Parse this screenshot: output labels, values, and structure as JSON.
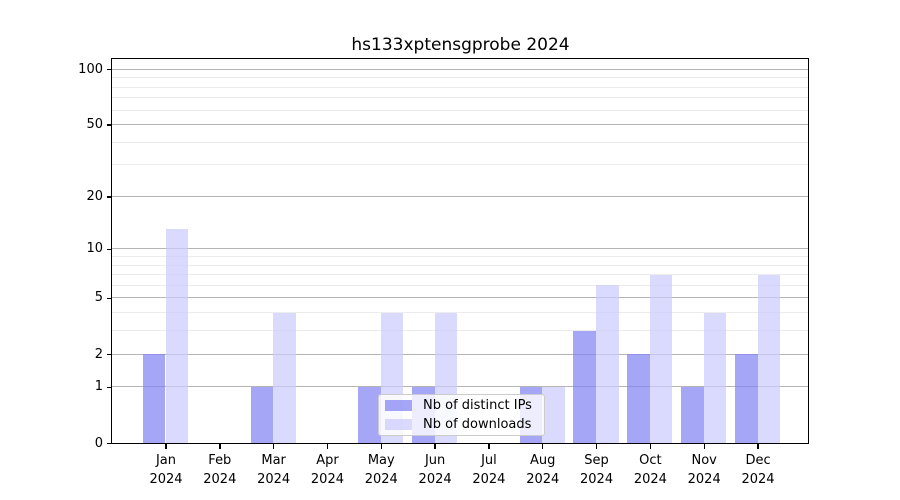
{
  "chart_data": {
    "type": "bar",
    "title": "hs133xptensgprobe 2024",
    "categories": [
      "Jan 2024",
      "Feb 2024",
      "Mar 2024",
      "Apr 2024",
      "May 2024",
      "Jun 2024",
      "Jul 2024",
      "Aug 2024",
      "Sep 2024",
      "Oct 2024",
      "Nov 2024",
      "Dec 2024"
    ],
    "series": [
      {
        "name": "Nb of distinct IPs",
        "color": "rgba(132,132,242,0.72)",
        "values": [
          2,
          0,
          1,
          0,
          1,
          1,
          0,
          1,
          3,
          2,
          1,
          2
        ]
      },
      {
        "name": "Nb of downloads",
        "color": "rgba(204,204,255,0.72)",
        "values": [
          13,
          0,
          4,
          0,
          4,
          4,
          0,
          1,
          6,
          7,
          4,
          7
        ]
      }
    ],
    "xlabel": "",
    "ylabel": "",
    "yscale": "log1p",
    "ylim": [
      0,
      113.6
    ],
    "yticks": [
      0,
      1,
      2,
      5,
      10,
      20,
      50,
      100
    ],
    "yticks_minor": [
      3,
      4,
      6,
      7,
      8,
      9,
      30,
      40,
      60,
      70,
      80,
      90
    ],
    "grid": "horizontal",
    "legend_position": "lower center",
    "colors": {
      "grid_major": "#b5b5b5",
      "grid_minor": "#ececec",
      "spine": "#000000",
      "text": "#000000"
    }
  }
}
